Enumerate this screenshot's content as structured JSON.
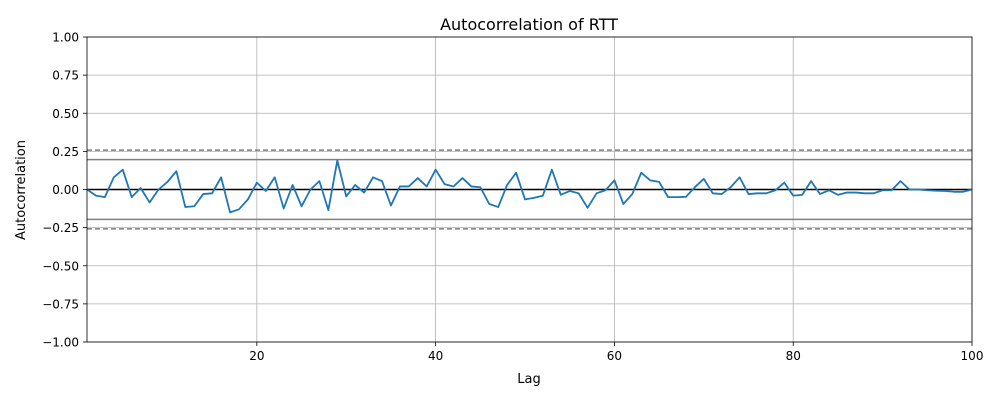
{
  "chart_data": {
    "type": "line",
    "title": "Autocorrelation of RTT",
    "xlabel": "Lag",
    "ylabel": "Autocorrelation",
    "xlim": [
      1,
      100
    ],
    "ylim": [
      -1.0,
      1.0
    ],
    "grid": true,
    "x_ticks": [
      20,
      40,
      60,
      80,
      100
    ],
    "x_tick_labels": [
      "20",
      "40",
      "60",
      "80",
      "100"
    ],
    "y_ticks": [
      -1.0,
      -0.75,
      -0.5,
      -0.25,
      0.0,
      0.25,
      0.5,
      0.75,
      1.0
    ],
    "y_tick_labels": [
      "−1.00",
      "−0.75",
      "−0.50",
      "−0.25",
      "0.00",
      "0.25",
      "0.50",
      "0.75",
      "1.00"
    ],
    "confidence_bands": {
      "inner": 0.196,
      "outer": 0.258
    },
    "colors": {
      "series": "#1f77b4",
      "zero_line": "#000000",
      "band_line": "#808080",
      "grid": "#b0b0b0"
    },
    "series": [
      {
        "x": [
          1,
          2,
          3,
          4,
          5,
          6,
          7,
          8,
          9,
          10,
          11,
          12,
          13,
          14,
          15,
          16,
          17,
          18,
          19,
          20,
          21,
          22,
          23,
          24,
          25,
          26,
          27,
          28,
          29,
          30,
          31,
          32,
          33,
          34,
          35,
          36,
          37,
          38,
          39,
          40,
          41,
          42,
          43,
          44,
          45,
          46,
          47,
          48,
          49,
          50,
          51,
          52,
          53,
          54,
          55,
          56,
          57,
          58,
          59,
          60,
          61,
          62,
          63,
          64,
          65,
          66,
          67,
          68,
          69,
          70,
          71,
          72,
          73,
          74,
          75,
          76,
          77,
          78,
          79,
          80,
          81,
          82,
          83,
          84,
          85,
          86,
          87,
          88,
          89,
          90,
          91,
          92,
          93,
          94,
          95,
          96,
          97,
          98,
          99,
          100
        ],
        "values": [
          0.0,
          -0.04,
          -0.05,
          0.08,
          0.13,
          -0.05,
          0.01,
          -0.085,
          0.0,
          0.05,
          0.12,
          -0.115,
          -0.11,
          -0.03,
          -0.025,
          0.08,
          -0.15,
          -0.13,
          -0.065,
          0.045,
          -0.01,
          0.08,
          -0.125,
          0.03,
          -0.11,
          0.0,
          0.055,
          -0.135,
          0.19,
          -0.045,
          0.03,
          -0.02,
          0.08,
          0.055,
          -0.105,
          0.02,
          0.02,
          0.075,
          0.02,
          0.13,
          0.035,
          0.02,
          0.075,
          0.02,
          0.015,
          -0.095,
          -0.115,
          0.03,
          0.11,
          -0.065,
          -0.055,
          -0.04,
          0.13,
          -0.035,
          -0.01,
          -0.025,
          -0.12,
          -0.025,
          -0.005,
          0.06,
          -0.095,
          -0.03,
          0.11,
          0.06,
          0.05,
          -0.05,
          -0.05,
          -0.048,
          0.015,
          0.07,
          -0.025,
          -0.03,
          0.015,
          0.08,
          -0.03,
          -0.025,
          -0.025,
          -0.005,
          0.045,
          -0.04,
          -0.035,
          0.055,
          -0.03,
          -0.005,
          -0.035,
          -0.02,
          -0.02,
          -0.025,
          -0.025,
          -0.005,
          -0.005,
          0.055,
          0.0,
          0.0,
          -0.005,
          -0.008,
          -0.01,
          -0.015,
          -0.015,
          0.0
        ]
      }
    ]
  }
}
